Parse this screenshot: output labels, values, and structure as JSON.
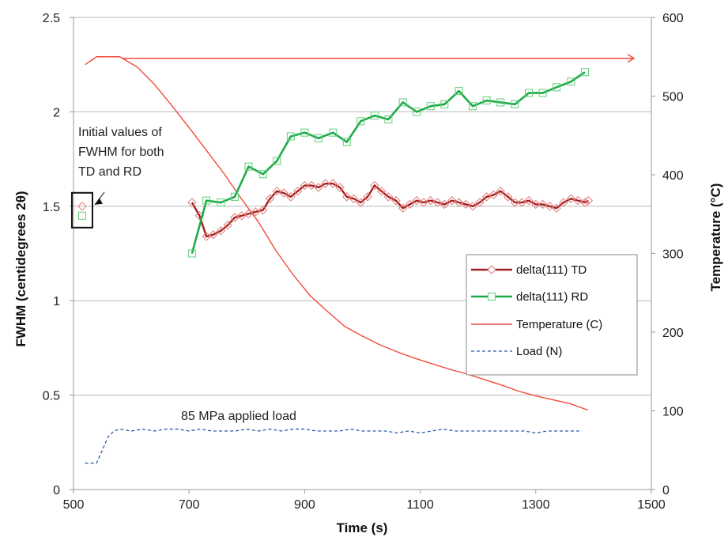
{
  "chart_data": {
    "type": "line",
    "xlabel": "Time (s)",
    "ylabel_left": "FWHM (centidegrees 2θ)",
    "ylabel_right": "Temperature (°C)",
    "xlim": [
      500,
      1500
    ],
    "ylim_left": [
      0,
      2.5
    ],
    "ylim_right": [
      0,
      600
    ],
    "xticks": [
      "500",
      "700",
      "900",
      "1100",
      "1300",
      "1500"
    ],
    "yticks_left": [
      "0",
      "0.5",
      "1",
      "1.5",
      "2",
      "2.5"
    ],
    "yticks_right": [
      "0",
      "100",
      "200",
      "300",
      "400",
      "500",
      "600"
    ],
    "grid": "horizontal",
    "legend_position": "right",
    "series": [
      {
        "name": "delta(111) TD",
        "axis": "left",
        "color": "#a31f1f",
        "marker": "diamond",
        "x": [
          705,
          718,
          730,
          742,
          755,
          767,
          779,
          791,
          803,
          815,
          828,
          840,
          852,
          864,
          876,
          888,
          900,
          912,
          924,
          936,
          949,
          961,
          973,
          985,
          997,
          1009,
          1021,
          1033,
          1045,
          1058,
          1070,
          1082,
          1094,
          1106,
          1118,
          1130,
          1142,
          1155,
          1167,
          1179,
          1191,
          1203,
          1215,
          1227,
          1239,
          1252,
          1264,
          1276,
          1288,
          1300,
          1312,
          1324,
          1336,
          1348,
          1361,
          1373,
          1385,
          1391
        ],
        "values": [
          1.52,
          1.45,
          1.34,
          1.35,
          1.37,
          1.4,
          1.44,
          1.45,
          1.46,
          1.47,
          1.48,
          1.54,
          1.58,
          1.57,
          1.55,
          1.58,
          1.61,
          1.61,
          1.6,
          1.62,
          1.62,
          1.6,
          1.55,
          1.54,
          1.52,
          1.55,
          1.61,
          1.58,
          1.55,
          1.53,
          1.49,
          1.51,
          1.53,
          1.52,
          1.53,
          1.52,
          1.51,
          1.53,
          1.52,
          1.51,
          1.5,
          1.52,
          1.55,
          1.56,
          1.58,
          1.55,
          1.52,
          1.52,
          1.53,
          1.51,
          1.51,
          1.5,
          1.49,
          1.52,
          1.54,
          1.53,
          1.52,
          1.53
        ]
      },
      {
        "name": "delta(111) RD",
        "axis": "left",
        "color": "#1faa4a",
        "marker": "square",
        "x": [
          705,
          730,
          755,
          779,
          803,
          828,
          852,
          876,
          900,
          924,
          949,
          973,
          997,
          1021,
          1045,
          1070,
          1094,
          1118,
          1142,
          1167,
          1191,
          1215,
          1239,
          1264,
          1288,
          1312,
          1336,
          1361,
          1385
        ],
        "values": [
          1.25,
          1.53,
          1.52,
          1.55,
          1.71,
          1.67,
          1.74,
          1.87,
          1.89,
          1.86,
          1.89,
          1.84,
          1.95,
          1.98,
          1.96,
          2.05,
          2.0,
          2.03,
          2.04,
          2.11,
          2.03,
          2.06,
          2.05,
          2.04,
          2.1,
          2.1,
          2.13,
          2.16,
          2.21
        ]
      },
      {
        "name": "Temperature (C)",
        "axis": "right",
        "color": "#f44a3a",
        "marker": "none",
        "x": [
          520,
          540,
          560,
          580,
          610,
          640,
          670,
          700,
          730,
          760,
          790,
          820,
          850,
          880,
          910,
          940,
          970,
          1000,
          1030,
          1060,
          1090,
          1120,
          1150,
          1180,
          1210,
          1240,
          1270,
          1300,
          1330,
          1360,
          1390
        ],
        "values": [
          540,
          550,
          550,
          550,
          537,
          515,
          488,
          460,
          431,
          402,
          370,
          340,
          304,
          273,
          246,
          226,
          207,
          195,
          184,
          175,
          167,
          160,
          153,
          147,
          140,
          133,
          125,
          119,
          114,
          109,
          101
        ]
      },
      {
        "name": "Load (N)",
        "axis": "left",
        "color": "#2c5aa8",
        "marker": "none",
        "dash": true,
        "x": [
          520,
          540,
          560,
          570,
          580,
          600,
          620,
          640,
          660,
          680,
          700,
          720,
          740,
          760,
          780,
          800,
          820,
          840,
          860,
          880,
          900,
          920,
          940,
          960,
          980,
          1000,
          1020,
          1040,
          1060,
          1080,
          1100,
          1120,
          1140,
          1160,
          1180,
          1200,
          1220,
          1240,
          1260,
          1280,
          1300,
          1320,
          1340,
          1360,
          1380
        ],
        "values": [
          0.14,
          0.14,
          0.28,
          0.31,
          0.32,
          0.31,
          0.32,
          0.31,
          0.32,
          0.32,
          0.31,
          0.32,
          0.31,
          0.31,
          0.31,
          0.32,
          0.31,
          0.32,
          0.31,
          0.32,
          0.32,
          0.31,
          0.31,
          0.31,
          0.32,
          0.31,
          0.31,
          0.31,
          0.3,
          0.31,
          0.3,
          0.31,
          0.32,
          0.31,
          0.31,
          0.31,
          0.31,
          0.31,
          0.31,
          0.31,
          0.3,
          0.31,
          0.31,
          0.31,
          0.31
        ]
      }
    ],
    "temperature_hold": {
      "x": [
        585,
        1470
      ],
      "value": 548
    },
    "initial_values": {
      "x": 515,
      "td": 1.5,
      "rd": 1.45
    },
    "annotations": {
      "initial_values": "Initial values of FWHM for both TD and RD",
      "initial_lines": [
        "Initial values of",
        "FWHM for both",
        "TD and RD"
      ],
      "load_label": "85 MPa applied load"
    }
  }
}
